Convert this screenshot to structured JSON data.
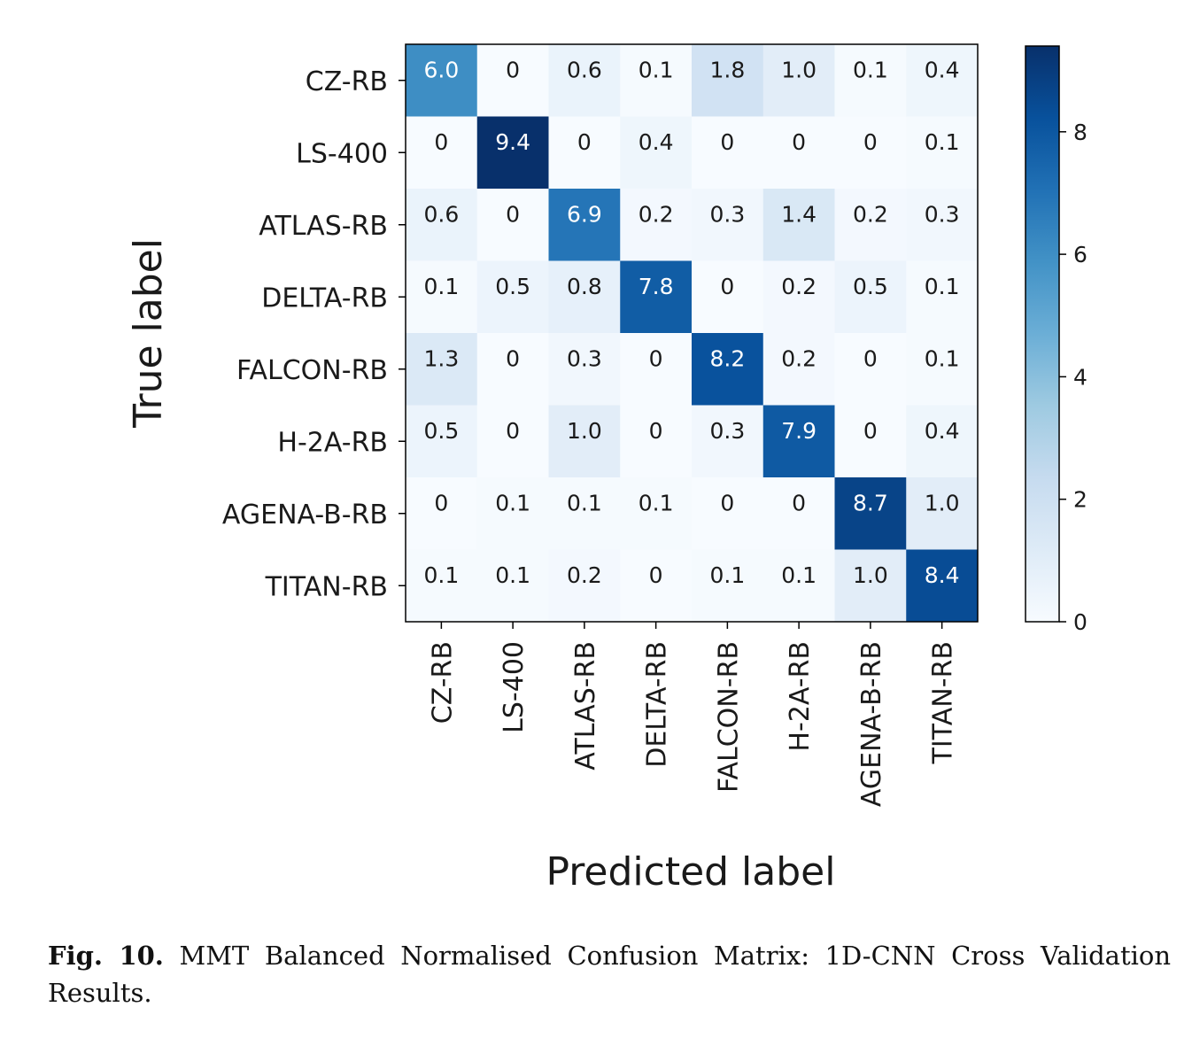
{
  "chart_data": {
    "type": "heatmap",
    "xlabel": "Predicted label",
    "ylabel": "True label",
    "row_labels": [
      "CZ-RB",
      "LS-400",
      "ATLAS-RB",
      "DELTA-RB",
      "FALCON-RB",
      "H-2A-RB",
      "AGENA-B-RB",
      "TITAN-RB"
    ],
    "col_labels": [
      "CZ-RB",
      "LS-400",
      "ATLAS-RB",
      "DELTA-RB",
      "FALCON-RB",
      "H-2A-RB",
      "AGENA-B-RB",
      "TITAN-RB"
    ],
    "values": [
      [
        6.0,
        0,
        0.6,
        0.1,
        1.8,
        1.0,
        0.1,
        0.4
      ],
      [
        0,
        9.4,
        0,
        0.4,
        0,
        0,
        0,
        0.1
      ],
      [
        0.6,
        0,
        6.9,
        0.2,
        0.3,
        1.4,
        0.2,
        0.3
      ],
      [
        0.1,
        0.5,
        0.8,
        7.8,
        0,
        0.2,
        0.5,
        0.1
      ],
      [
        1.3,
        0,
        0.3,
        0,
        8.2,
        0.2,
        0,
        0.1
      ],
      [
        0.5,
        0,
        1.0,
        0,
        0.3,
        7.9,
        0,
        0.4
      ],
      [
        0,
        0.1,
        0.1,
        0.1,
        0,
        0,
        8.7,
        1.0
      ],
      [
        0.1,
        0.1,
        0.2,
        0,
        0.1,
        0.1,
        1.0,
        8.4
      ]
    ],
    "labels": [
      [
        "6.0",
        "0",
        "0.6",
        "0.1",
        "1.8",
        "1.0",
        "0.1",
        "0.4"
      ],
      [
        "0",
        "9.4",
        "0",
        "0.4",
        "0",
        "0",
        "0",
        "0.1"
      ],
      [
        "0.6",
        "0",
        "6.9",
        "0.2",
        "0.3",
        "1.4",
        "0.2",
        "0.3"
      ],
      [
        "0.1",
        "0.5",
        "0.8",
        "7.8",
        "0",
        "0.2",
        "0.5",
        "0.1"
      ],
      [
        "1.3",
        "0",
        "0.3",
        "0",
        "8.2",
        "0.2",
        "0",
        "0.1"
      ],
      [
        "0.5",
        "0",
        "1.0",
        "0",
        "0.3",
        "7.9",
        "0",
        "0.4"
      ],
      [
        "0",
        "0.1",
        "0.1",
        "0.1",
        "0",
        "0",
        "8.7",
        "1.0"
      ],
      [
        "0.1",
        "0.1",
        "0.2",
        "0",
        "0.1",
        "0.1",
        "1.0",
        "8.4"
      ]
    ],
    "colormap": "Blues",
    "color_low": "#f7fbff",
    "color_high": "#08306b",
    "vmin": 0,
    "vmax": 9.4,
    "colorbar_ticks": [
      0,
      2,
      4,
      6,
      8
    ],
    "legend_position": "right"
  },
  "caption": {
    "label": "Fig. 10.",
    "text": "MMT Balanced Normalised Confusion Matrix: 1D-CNN Cross Validation Results."
  }
}
